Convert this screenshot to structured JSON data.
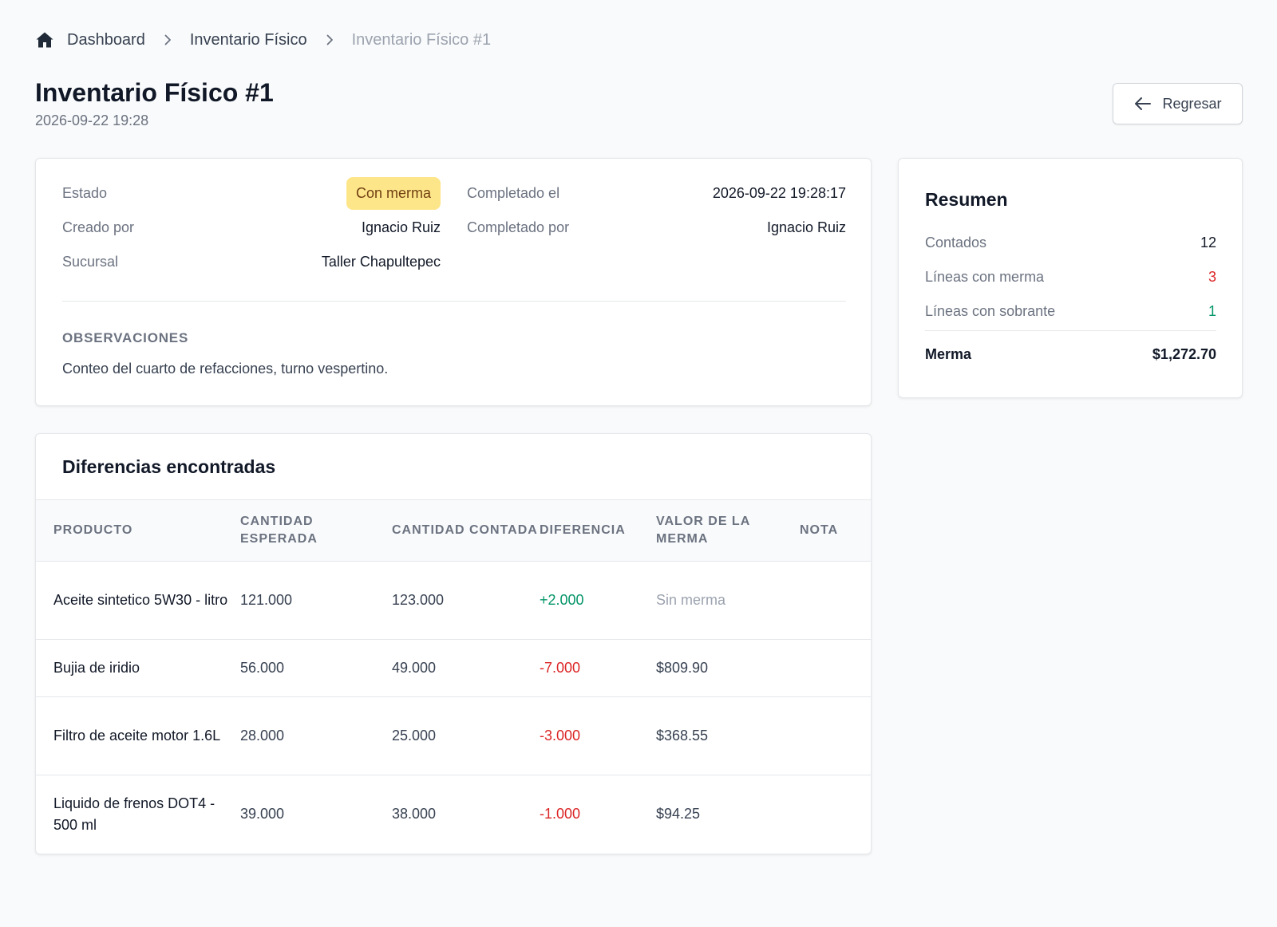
{
  "breadcrumb": {
    "home": "Dashboard",
    "section": "Inventario Físico",
    "current": "Inventario Físico #1"
  },
  "header": {
    "title": "Inventario Físico #1",
    "subtitle": "2026-09-22 19:28",
    "back_label": "Regresar"
  },
  "info": {
    "estado_label": "Estado",
    "estado_value": "Con merma",
    "creado_label": "Creado por",
    "creado_value": "Ignacio Ruiz",
    "sucursal_label": "Sucursal",
    "sucursal_value": "Taller Chapultepec",
    "completado_el_label": "Completado el",
    "completado_el_value": "2026-09-22 19:28:17",
    "completado_por_label": "Completado por",
    "completado_por_value": "Ignacio Ruiz",
    "obs_title": "OBSERVACIONES",
    "obs_text": "Conteo del cuarto de refacciones, turno vespertino."
  },
  "summary": {
    "title": "Resumen",
    "contados_label": "Contados",
    "contados_value": "12",
    "merma_lines_label": "Líneas con merma",
    "merma_lines_value": "3",
    "sobrante_lines_label": "Líneas con sobrante",
    "sobrante_lines_value": "1",
    "total_label": "Merma",
    "total_value": "$1,272.70"
  },
  "table": {
    "title": "Diferencias encontradas",
    "headers": {
      "producto": "PRODUCTO",
      "esperada": "CANTIDAD ESPERADA",
      "contada": "CANTIDAD CONTADA",
      "diferencia": "DIFERENCIA",
      "valor": "VALOR DE LA MERMA",
      "nota": "NOTA"
    },
    "rows": [
      {
        "producto": "Aceite sintetico 5W30 - litro",
        "esperada": "121.000",
        "contada": "123.000",
        "diferencia": "+2.000",
        "valor": "Sin merma",
        "nota": ""
      },
      {
        "producto": "Bujia de iridio",
        "esperada": "56.000",
        "contada": "49.000",
        "diferencia": "-7.000",
        "valor": "$809.90",
        "nota": ""
      },
      {
        "producto": "Filtro de aceite motor 1.6L",
        "esperada": "28.000",
        "contada": "25.000",
        "diferencia": "-3.000",
        "valor": "$368.55",
        "nota": ""
      },
      {
        "producto": "Liquido de frenos DOT4 - 500 ml",
        "esperada": "39.000",
        "contada": "38.000",
        "diferencia": "-1.000",
        "valor": "$94.25",
        "nota": ""
      }
    ]
  },
  "colors": {
    "negative": "#dc2626",
    "positive": "#059669",
    "badge_bg": "#fde68a"
  }
}
